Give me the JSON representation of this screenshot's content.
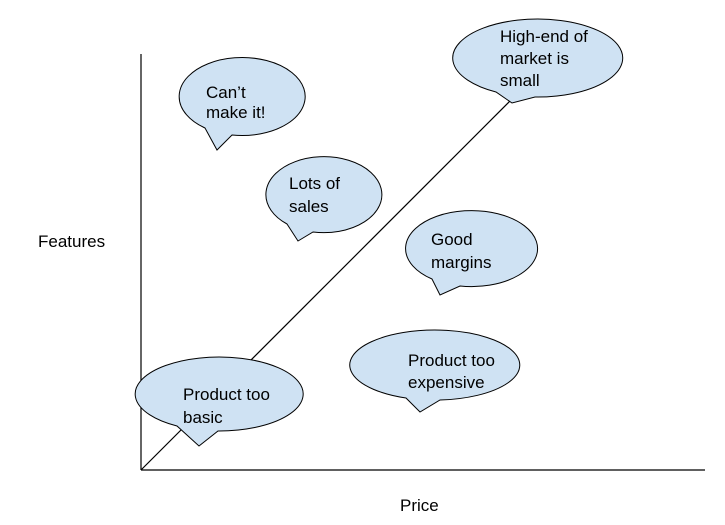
{
  "axes": {
    "x_label": "Price",
    "y_label": "Features"
  },
  "colors": {
    "bubble_fill": "#cfe2f3",
    "stroke": "#000000"
  },
  "bubbles": [
    {
      "id": "cant-make-it",
      "lines": [
        "Can’t",
        "make it!"
      ]
    },
    {
      "id": "high-end",
      "lines": [
        "High-end of",
        "market is",
        "small"
      ]
    },
    {
      "id": "lots-of-sales",
      "lines": [
        "Lots of",
        "sales"
      ]
    },
    {
      "id": "good-margins",
      "lines": [
        "Good",
        "margins"
      ]
    },
    {
      "id": "product-too-expensive",
      "lines": [
        "Product too",
        "expensive"
      ]
    },
    {
      "id": "product-too-basic",
      "lines": [
        "Product too",
        "basic"
      ]
    }
  ]
}
